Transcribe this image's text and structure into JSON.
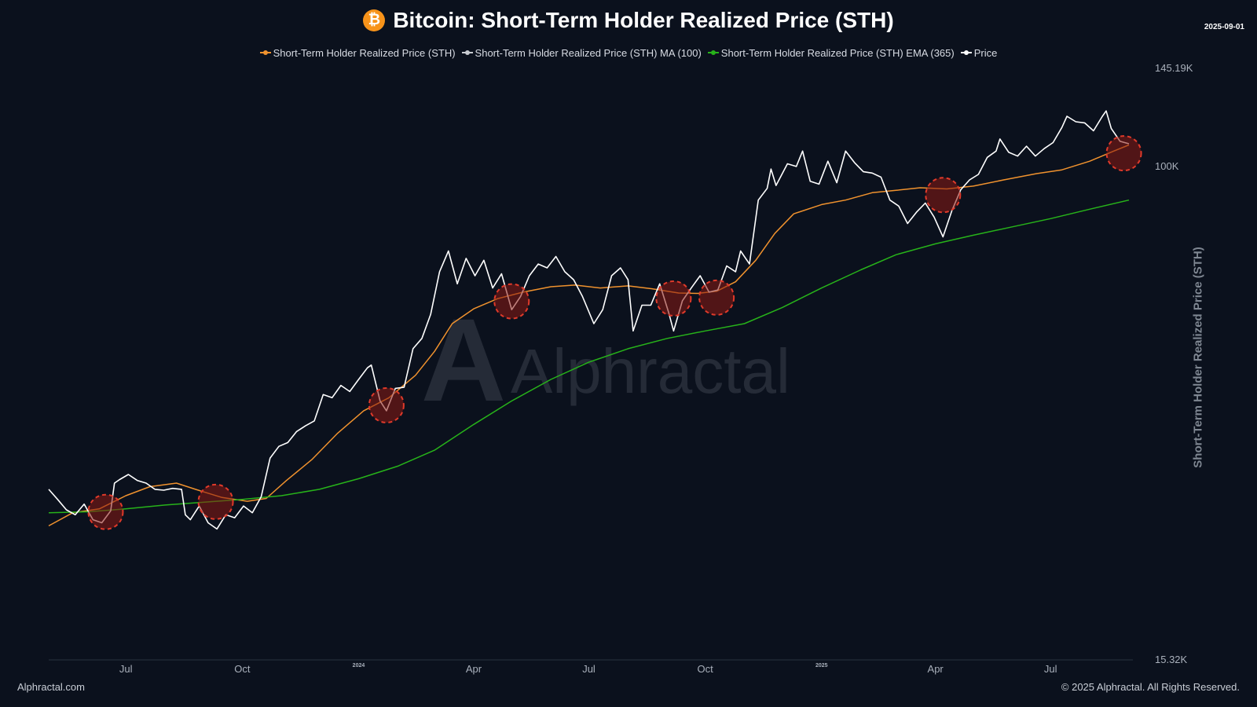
{
  "header": {
    "title": "Bitcoin: Short-Term Holder Realized Price (STH)",
    "btc_icon_glyph": "₿",
    "date": "2025-09-01"
  },
  "watermark": {
    "text": "Alphractal",
    "logo_letter": "A"
  },
  "footer": {
    "left": "Alphractal.com",
    "right": "© 2025 Alphractal. All Rights Reserved."
  },
  "chart_data": {
    "type": "line",
    "title": "Bitcoin: Short-Term Holder Realized Price (STH)",
    "ylabel": "Short-Term Holder Realized Price (STH)",
    "xlabel": "",
    "y_scale": "log",
    "ylim": [
      15320,
      145190
    ],
    "y_tick_labels": [
      {
        "label": "145.19K",
        "value": 145190
      },
      {
        "label": "100K",
        "value": 100000
      },
      {
        "label": "15.32K",
        "value": 15320
      }
    ],
    "x_range": [
      "2023-05-01",
      "2025-09-01"
    ],
    "x_ticks": [
      {
        "label": "Jul",
        "date": "2023-07-01",
        "small": false
      },
      {
        "label": "Oct",
        "date": "2023-10-01",
        "small": false
      },
      {
        "label": "2024",
        "date": "2024-01-01",
        "small": true
      },
      {
        "label": "Apr",
        "date": "2024-04-01",
        "small": false
      },
      {
        "label": "Jul",
        "date": "2024-07-01",
        "small": false
      },
      {
        "label": "Oct",
        "date": "2024-10-01",
        "small": false
      },
      {
        "label": "2025",
        "date": "2025-01-01",
        "small": true
      },
      {
        "label": "Apr",
        "date": "2025-04-01",
        "small": false
      },
      {
        "label": "Jul",
        "date": "2025-07-01",
        "small": false
      }
    ],
    "legend_position": "top-center",
    "grid": false,
    "series": [
      {
        "name": "Short-Term Holder Realized Price (STH)",
        "color": "#f0922e",
        "visible": true,
        "points": [
          [
            "2023-05-01",
            25500
          ],
          [
            "2023-05-20",
            26800
          ],
          [
            "2023-06-10",
            27200
          ],
          [
            "2023-07-01",
            28600
          ],
          [
            "2023-07-20",
            29600
          ],
          [
            "2023-08-10",
            30000
          ],
          [
            "2023-08-25",
            29300
          ],
          [
            "2023-09-15",
            28400
          ],
          [
            "2023-10-05",
            28000
          ],
          [
            "2023-10-20",
            28300
          ],
          [
            "2023-11-05",
            30300
          ],
          [
            "2023-11-25",
            32800
          ],
          [
            "2023-12-15",
            36200
          ],
          [
            "2024-01-05",
            39500
          ],
          [
            "2024-01-25",
            41500
          ],
          [
            "2024-02-15",
            45200
          ],
          [
            "2024-03-01",
            49500
          ],
          [
            "2024-03-15",
            55000
          ],
          [
            "2024-04-01",
            58200
          ],
          [
            "2024-04-20",
            60500
          ],
          [
            "2024-05-10",
            62000
          ],
          [
            "2024-06-01",
            63300
          ],
          [
            "2024-06-20",
            63700
          ],
          [
            "2024-07-10",
            63000
          ],
          [
            "2024-08-01",
            63500
          ],
          [
            "2024-08-20",
            62800
          ],
          [
            "2024-09-10",
            61800
          ],
          [
            "2024-09-25",
            61700
          ],
          [
            "2024-10-10",
            62200
          ],
          [
            "2024-10-25",
            64500
          ],
          [
            "2024-11-10",
            70000
          ],
          [
            "2024-11-25",
            77500
          ],
          [
            "2024-12-10",
            83500
          ],
          [
            "2025-01-01",
            86500
          ],
          [
            "2025-01-20",
            88000
          ],
          [
            "2025-02-10",
            90500
          ],
          [
            "2025-03-01",
            91300
          ],
          [
            "2025-03-20",
            92200
          ],
          [
            "2025-04-10",
            91800
          ],
          [
            "2025-05-01",
            92800
          ],
          [
            "2025-05-25",
            95000
          ],
          [
            "2025-06-20",
            97300
          ],
          [
            "2025-07-10",
            98700
          ],
          [
            "2025-08-01",
            102000
          ],
          [
            "2025-08-20",
            106000
          ],
          [
            "2025-09-01",
            108500
          ]
        ]
      },
      {
        "name": "Short-Term Holder Realized Price (STH) MA (100)",
        "color": "#c9ccd2",
        "visible": false,
        "points": []
      },
      {
        "name": "Short-Term Holder Realized Price (STH) EMA (365)",
        "color": "#27b31a",
        "visible": true,
        "points": [
          [
            "2023-05-01",
            26800
          ],
          [
            "2023-06-01",
            26900
          ],
          [
            "2023-07-01",
            27200
          ],
          [
            "2023-08-01",
            27600
          ],
          [
            "2023-09-01",
            27900
          ],
          [
            "2023-10-01",
            28200
          ],
          [
            "2023-11-01",
            28600
          ],
          [
            "2023-12-01",
            29300
          ],
          [
            "2024-01-01",
            30500
          ],
          [
            "2024-02-01",
            32000
          ],
          [
            "2024-03-01",
            34000
          ],
          [
            "2024-04-01",
            37500
          ],
          [
            "2024-05-01",
            41000
          ],
          [
            "2024-06-01",
            44500
          ],
          [
            "2024-07-01",
            47500
          ],
          [
            "2024-08-01",
            50000
          ],
          [
            "2024-09-01",
            52000
          ],
          [
            "2024-10-01",
            53500
          ],
          [
            "2024-11-01",
            55000
          ],
          [
            "2024-12-01",
            58500
          ],
          [
            "2025-01-01",
            63000
          ],
          [
            "2025-02-01",
            67500
          ],
          [
            "2025-03-01",
            71500
          ],
          [
            "2025-04-01",
            74500
          ],
          [
            "2025-05-01",
            77000
          ],
          [
            "2025-06-01",
            79500
          ],
          [
            "2025-07-01",
            82000
          ],
          [
            "2025-08-01",
            85000
          ],
          [
            "2025-09-01",
            88000
          ]
        ]
      },
      {
        "name": "Price",
        "color": "#ffffff",
        "visible": true,
        "points": [
          [
            "2023-05-01",
            29300
          ],
          [
            "2023-05-08",
            28200
          ],
          [
            "2023-05-15",
            27100
          ],
          [
            "2023-05-22",
            26600
          ],
          [
            "2023-05-29",
            27700
          ],
          [
            "2023-06-05",
            26100
          ],
          [
            "2023-06-12",
            25800
          ],
          [
            "2023-06-19",
            27000
          ],
          [
            "2023-06-22",
            30000
          ],
          [
            "2023-06-26",
            30400
          ],
          [
            "2023-07-03",
            31000
          ],
          [
            "2023-07-10",
            30300
          ],
          [
            "2023-07-17",
            30000
          ],
          [
            "2023-07-24",
            29300
          ],
          [
            "2023-07-31",
            29200
          ],
          [
            "2023-08-07",
            29400
          ],
          [
            "2023-08-14",
            29300
          ],
          [
            "2023-08-17",
            26600
          ],
          [
            "2023-08-21",
            26100
          ],
          [
            "2023-08-28",
            27500
          ],
          [
            "2023-09-04",
            25800
          ],
          [
            "2023-09-11",
            25200
          ],
          [
            "2023-09-18",
            26600
          ],
          [
            "2023-09-25",
            26300
          ],
          [
            "2023-10-02",
            27500
          ],
          [
            "2023-10-09",
            26800
          ],
          [
            "2023-10-16",
            28500
          ],
          [
            "2023-10-23",
            33000
          ],
          [
            "2023-10-30",
            34500
          ],
          [
            "2023-11-06",
            35000
          ],
          [
            "2023-11-13",
            36500
          ],
          [
            "2023-11-20",
            37300
          ],
          [
            "2023-11-27",
            38000
          ],
          [
            "2023-12-04",
            42000
          ],
          [
            "2023-12-11",
            41500
          ],
          [
            "2023-12-18",
            43500
          ],
          [
            "2023-12-25",
            42500
          ],
          [
            "2024-01-01",
            44500
          ],
          [
            "2024-01-08",
            46500
          ],
          [
            "2024-01-11",
            47000
          ],
          [
            "2024-01-18",
            41000
          ],
          [
            "2024-01-23",
            39500
          ],
          [
            "2024-01-30",
            43000
          ],
          [
            "2024-02-06",
            43200
          ],
          [
            "2024-02-13",
            50000
          ],
          [
            "2024-02-20",
            52000
          ],
          [
            "2024-02-27",
            57000
          ],
          [
            "2024-03-05",
            67000
          ],
          [
            "2024-03-12",
            72500
          ],
          [
            "2024-03-19",
            64000
          ],
          [
            "2024-03-26",
            70500
          ],
          [
            "2024-04-02",
            66000
          ],
          [
            "2024-04-09",
            70000
          ],
          [
            "2024-04-16",
            63000
          ],
          [
            "2024-04-23",
            66500
          ],
          [
            "2024-05-01",
            58000
          ],
          [
            "2024-05-08",
            61000
          ],
          [
            "2024-05-15",
            66000
          ],
          [
            "2024-05-22",
            69000
          ],
          [
            "2024-05-29",
            68000
          ],
          [
            "2024-06-05",
            71000
          ],
          [
            "2024-06-12",
            67000
          ],
          [
            "2024-06-19",
            65000
          ],
          [
            "2024-06-26",
            61000
          ],
          [
            "2024-07-05",
            55000
          ],
          [
            "2024-07-12",
            58000
          ],
          [
            "2024-07-19",
            66000
          ],
          [
            "2024-07-26",
            68000
          ],
          [
            "2024-08-01",
            65000
          ],
          [
            "2024-08-05",
            53500
          ],
          [
            "2024-08-12",
            59000
          ],
          [
            "2024-08-19",
            59000
          ],
          [
            "2024-08-26",
            64000
          ],
          [
            "2024-09-02",
            57500
          ],
          [
            "2024-09-06",
            53500
          ],
          [
            "2024-09-13",
            60000
          ],
          [
            "2024-09-20",
            63000
          ],
          [
            "2024-09-27",
            66000
          ],
          [
            "2024-10-04",
            62000
          ],
          [
            "2024-10-11",
            62500
          ],
          [
            "2024-10-18",
            68500
          ],
          [
            "2024-10-25",
            67000
          ],
          [
            "2024-10-29",
            72500
          ],
          [
            "2024-11-05",
            69000
          ],
          [
            "2024-11-12",
            88000
          ],
          [
            "2024-11-19",
            92000
          ],
          [
            "2024-11-22",
            99000
          ],
          [
            "2024-11-26",
            93000
          ],
          [
            "2024-12-05",
            101000
          ],
          [
            "2024-12-12",
            100000
          ],
          [
            "2024-12-17",
            106000
          ],
          [
            "2024-12-23",
            94500
          ],
          [
            "2024-12-30",
            93500
          ],
          [
            "2025-01-06",
            102000
          ],
          [
            "2025-01-13",
            94000
          ],
          [
            "2025-01-20",
            106000
          ],
          [
            "2025-01-27",
            101500
          ],
          [
            "2025-02-03",
            98000
          ],
          [
            "2025-02-10",
            97500
          ],
          [
            "2025-02-17",
            96000
          ],
          [
            "2025-02-24",
            88000
          ],
          [
            "2025-03-03",
            86000
          ],
          [
            "2025-03-10",
            80500
          ],
          [
            "2025-03-17",
            84000
          ],
          [
            "2025-03-24",
            87000
          ],
          [
            "2025-03-31",
            82500
          ],
          [
            "2025-04-07",
            76500
          ],
          [
            "2025-04-14",
            84500
          ],
          [
            "2025-04-21",
            91500
          ],
          [
            "2025-04-28",
            95000
          ],
          [
            "2025-05-05",
            97000
          ],
          [
            "2025-05-12",
            103500
          ],
          [
            "2025-05-19",
            106000
          ],
          [
            "2025-05-22",
            111000
          ],
          [
            "2025-05-29",
            105500
          ],
          [
            "2025-06-05",
            104000
          ],
          [
            "2025-06-12",
            108000
          ],
          [
            "2025-06-19",
            104000
          ],
          [
            "2025-06-26",
            107000
          ],
          [
            "2025-07-03",
            109500
          ],
          [
            "2025-07-10",
            116000
          ],
          [
            "2025-07-14",
            121000
          ],
          [
            "2025-07-21",
            118500
          ],
          [
            "2025-07-28",
            118000
          ],
          [
            "2025-08-04",
            114500
          ],
          [
            "2025-08-11",
            121000
          ],
          [
            "2025-08-14",
            123500
          ],
          [
            "2025-08-18",
            115500
          ],
          [
            "2025-08-25",
            110000
          ],
          [
            "2025-09-01",
            109000
          ]
        ]
      }
    ],
    "highlighted_touches": [
      "2023-06-15",
      "2023-09-10",
      "2024-01-23",
      "2024-05-01",
      "2024-09-06",
      "2024-10-10",
      "2025-04-07",
      "2025-08-28"
    ]
  }
}
